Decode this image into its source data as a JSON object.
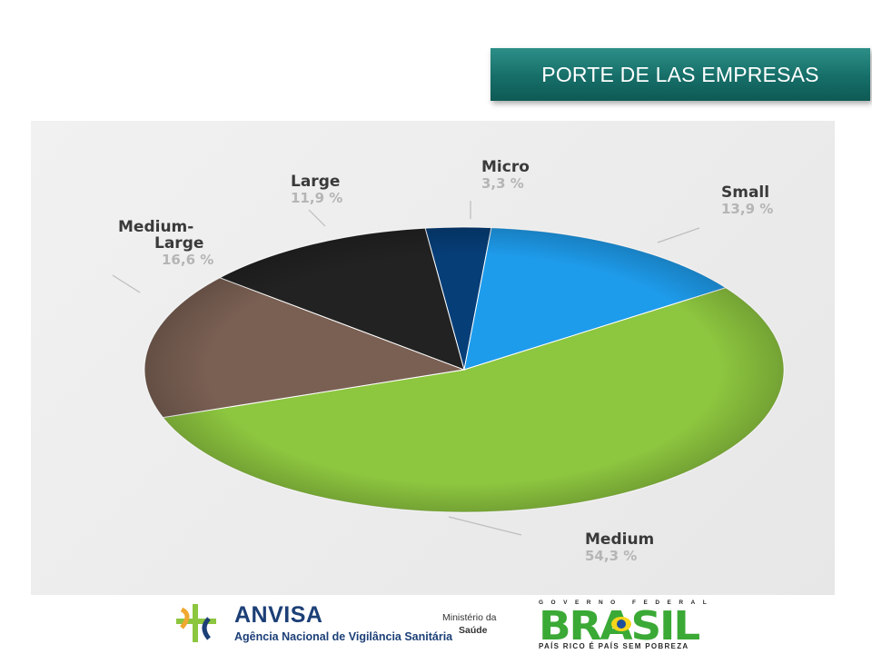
{
  "header": {
    "title": "PORTE DE LAS EMPRESAS"
  },
  "chart_data": {
    "type": "pie",
    "title": "",
    "slices": [
      {
        "name": "Micro",
        "value": 3.3,
        "label": "3,3 %",
        "color": "#063e78"
      },
      {
        "name": "Small",
        "value": 13.9,
        "label": "13,9 %",
        "color": "#1e9cec"
      },
      {
        "name": "Medium",
        "value": 54.3,
        "label": "54,3 %",
        "color": "#8dc63f"
      },
      {
        "name": "Medium-Large",
        "value": 16.6,
        "label": "16,6 %",
        "color": "#7a6053"
      },
      {
        "name": "Large",
        "value": 11.9,
        "label": "11,9 %",
        "color": "#222222"
      }
    ],
    "label_lines": {
      "Medium-Large": [
        "Medium-",
        "Large"
      ]
    }
  },
  "footer": {
    "anvisa": {
      "name": "ANVISA",
      "subtitle": "Agência Nacional de Vigilância Sanitária"
    },
    "ministerio": {
      "line1": "Ministério da",
      "line2": "Saúde"
    },
    "government": {
      "top": "GOVERNO FEDERAL",
      "brand": "BRASIL",
      "slogan": "PAÍS RICO É PAÍS SEM POBREZA"
    },
    "colors": {
      "anvisa_blue": "#1c3f77",
      "anvisa_green": "#8dc63f",
      "anvisa_orange": "#f0a830",
      "brasil_green": "#3aa935",
      "brasil_yellow": "#f8d51a",
      "brasil_blue": "#1d4f9b"
    }
  }
}
